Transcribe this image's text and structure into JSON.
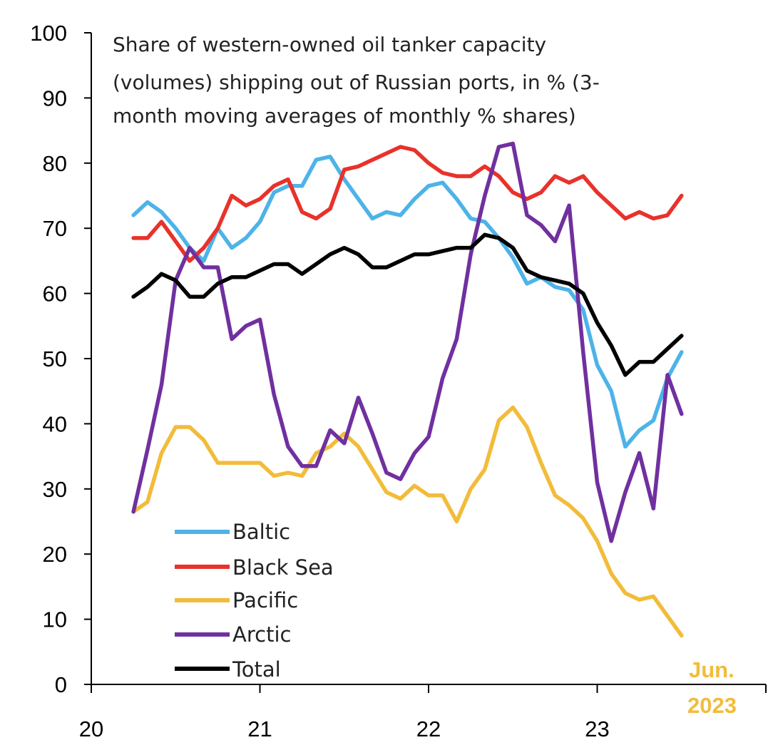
{
  "chart_data": {
    "type": "line",
    "title_lines": [
      "Share of western-owned oil tanker capacity",
      "(volumes) shipping out of Russian ports, in % (3-",
      "month moving averages of monthly % shares)"
    ],
    "xlabel": "",
    "ylabel": "",
    "ylim": [
      0,
      100
    ],
    "y_ticks": [
      {
        "v": 0,
        "label": "0"
      },
      {
        "v": 10,
        "label": "10"
      },
      {
        "v": 20,
        "label": "20"
      },
      {
        "v": 30,
        "label": "30"
      },
      {
        "v": 40,
        "label": "40"
      },
      {
        "v": 50,
        "label": "50"
      },
      {
        "v": 60,
        "label": "60"
      },
      {
        "v": 70,
        "label": "70"
      },
      {
        "v": 80,
        "label": "80"
      },
      {
        "v": 90,
        "label": "90"
      },
      {
        "v": 100,
        "label": "100"
      }
    ],
    "xlim": [
      0,
      48
    ],
    "x_ticks": [
      0,
      12,
      24,
      36,
      48
    ],
    "x_tick_labels": [
      {
        "pos": 0,
        "label": "20"
      },
      {
        "pos": 12,
        "label": "21"
      },
      {
        "pos": 24,
        "label": "22"
      },
      {
        "pos": 36,
        "label": "23"
      }
    ],
    "x_months": [
      3,
      4,
      5,
      6,
      7,
      8,
      9,
      10,
      11,
      12,
      13,
      14,
      15,
      16,
      17,
      18,
      19,
      20,
      21,
      22,
      23,
      24,
      25,
      26,
      27,
      28,
      29,
      30,
      31,
      32,
      33,
      34,
      35,
      36,
      37,
      38,
      39,
      40,
      41,
      42
    ],
    "grid": false,
    "legend_position": "bottom-left",
    "series": [
      {
        "name": "Baltic",
        "color": "#4db3e8",
        "values": [
          72,
          74,
          72.5,
          70,
          67,
          65,
          70,
          67,
          68.5,
          71,
          75.5,
          76.5,
          76.5,
          80.5,
          81,
          77.5,
          74.5,
          71.5,
          72.5,
          72,
          74.5,
          76.5,
          77,
          74.5,
          71.5,
          71,
          68.5,
          65.5,
          61.5,
          62.5,
          61,
          60.5,
          57.5,
          49,
          45,
          36.5,
          39,
          40.5,
          47,
          51
        ]
      },
      {
        "name": "Black Sea",
        "color": "#e8322b",
        "values": [
          68.5,
          68.5,
          71,
          68,
          65,
          67,
          70,
          75,
          73.5,
          74.5,
          76.5,
          77.5,
          72.5,
          71.5,
          73,
          79,
          79.5,
          80.5,
          81.5,
          82.5,
          82,
          80,
          78.5,
          78,
          78,
          79.5,
          78,
          75.5,
          74.5,
          75.5,
          78,
          77,
          78,
          75.5,
          73.5,
          71.5,
          72.5,
          71.5,
          72,
          75
        ]
      },
      {
        "name": "Pacific",
        "color": "#f2bc3a",
        "values": [
          26.5,
          28,
          35.5,
          39.5,
          39.5,
          37.5,
          34,
          34,
          34,
          34,
          32,
          32.5,
          32,
          35.5,
          36.5,
          38.5,
          36.5,
          33,
          29.5,
          28.5,
          30.5,
          29,
          29,
          25,
          30,
          33,
          40.5,
          42.5,
          39.5,
          34,
          29,
          27.5,
          25.5,
          22,
          17,
          14,
          13,
          13.5,
          10.5,
          7.5
        ]
      },
      {
        "name": "Arctic",
        "color": "#7030a0",
        "values": [
          26.5,
          36,
          46,
          62,
          67,
          64,
          64,
          53,
          55,
          56,
          44.5,
          36.5,
          33.5,
          33.5,
          39,
          37,
          44,
          38.5,
          32.5,
          31.5,
          35.5,
          38,
          47,
          53,
          66,
          75,
          82.5,
          83,
          72,
          70.5,
          68,
          73.5,
          51,
          31,
          22,
          29.5,
          35.5,
          27,
          47.5,
          41.5
        ]
      },
      {
        "name": "Total",
        "color": "#000000",
        "values": [
          59.5,
          61,
          63,
          62,
          59.5,
          59.5,
          61.5,
          62.5,
          62.5,
          63.5,
          64.5,
          64.5,
          63,
          64.5,
          66,
          67,
          66,
          64,
          64,
          65,
          66,
          66,
          66.5,
          67,
          67,
          69,
          68.5,
          67,
          63.5,
          62.5,
          62,
          61.5,
          60,
          55.5,
          52,
          47.5,
          49.5,
          49.5,
          51.5,
          53.5
        ]
      }
    ],
    "annotation": {
      "line1": "Jun.",
      "line2": "2023",
      "color": "#f2bc3a"
    }
  }
}
